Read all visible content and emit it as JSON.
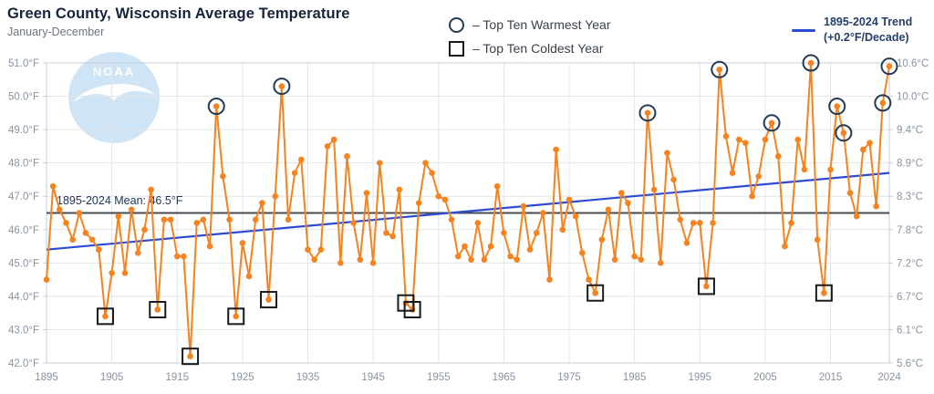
{
  "header": {
    "title": "Green County, Wisconsin Average Temperature",
    "subtitle": "January-December"
  },
  "legend": {
    "warmest_label": "– Top Ten Warmest Year",
    "coldest_label": "– Top Ten Coldest Year"
  },
  "trend_legend": {
    "line1": "1895-2024 Trend",
    "line2": "(+0.2°F/Decade)"
  },
  "logo": {
    "text": "NOAA"
  },
  "chart_data": {
    "type": "line",
    "title": "Green County, Wisconsin Average Temperature",
    "subtitle": "January-December",
    "x_start_year": 1895,
    "x_end_year": 2024,
    "unit": "°F",
    "values": [
      44.5,
      47.3,
      46.6,
      46.2,
      45.7,
      46.5,
      45.9,
      45.7,
      45.4,
      43.4,
      44.7,
      46.4,
      44.7,
      46.6,
      45.3,
      46.0,
      47.2,
      43.6,
      46.3,
      46.3,
      45.2,
      45.2,
      42.2,
      46.2,
      46.3,
      45.5,
      49.7,
      47.6,
      46.3,
      43.4,
      45.6,
      44.6,
      46.3,
      46.8,
      43.9,
      47.0,
      50.3,
      46.3,
      47.7,
      48.1,
      45.4,
      45.1,
      45.4,
      48.5,
      48.7,
      45.0,
      48.2,
      46.2,
      45.1,
      47.1,
      45.0,
      48.0,
      45.9,
      45.8,
      47.2,
      43.8,
      43.6,
      46.8,
      48.0,
      47.7,
      47.0,
      46.9,
      46.3,
      45.2,
      45.5,
      45.1,
      46.2,
      45.1,
      45.5,
      47.3,
      45.9,
      45.2,
      45.1,
      46.7,
      45.4,
      45.9,
      46.5,
      44.5,
      48.4,
      46.0,
      46.9,
      46.4,
      45.3,
      44.5,
      44.1,
      45.7,
      46.6,
      45.1,
      47.1,
      46.8,
      45.2,
      45.1,
      49.5,
      47.2,
      45.0,
      48.3,
      47.5,
      46.3,
      45.6,
      46.2,
      46.2,
      44.3,
      46.2,
      50.8,
      48.8,
      47.7,
      48.7,
      48.6,
      47.0,
      47.6,
      48.7,
      49.2,
      48.2,
      45.5,
      46.2,
      48.7,
      47.8,
      51.0,
      45.7,
      44.1,
      47.8,
      49.7,
      48.9,
      47.1,
      46.4,
      48.4,
      48.6,
      46.7,
      49.8,
      50.9
    ],
    "top_ten_warmest_years": [
      1921,
      1931,
      1987,
      1998,
      2006,
      2012,
      2016,
      2017,
      2023,
      2024
    ],
    "top_ten_coldest_years": [
      1904,
      1912,
      1917,
      1924,
      1929,
      1950,
      1951,
      1979,
      1996,
      2014
    ],
    "mean_f": 46.5,
    "mean_label": "1895-2024 Mean: 46.5°F",
    "trend_f_per_decade": 0.2,
    "trend_start_f": 45.4,
    "trend_end_f": 47.7,
    "ylim_f": [
      42.0,
      51.0
    ],
    "f_tick_labels": [
      "51.0°F",
      "50.0°F",
      "49.0°F",
      "48.0°F",
      "47.0°F",
      "46.0°F",
      "45.0°F",
      "44.0°F",
      "43.0°F",
      "42.0°F"
    ],
    "c_tick_labels": [
      "10.6°C",
      "10.0°C",
      "9.4°C",
      "8.9°C",
      "8.3°C",
      "7.8°C",
      "7.2°C",
      "6.7°C",
      "6.1°C",
      "5.6°C"
    ],
    "x_tick_years": [
      1895,
      1905,
      1915,
      1925,
      1935,
      1945,
      1955,
      1965,
      1975,
      1985,
      1995,
      2005,
      2015,
      2024
    ],
    "grid": true,
    "legend_position": "top",
    "colors": {
      "series": "#F5831F",
      "trend": "#2B4BD3",
      "mean_line": "#474B52",
      "warm_ring": "#243B55",
      "cold_square": "#1A1A1A",
      "gridline": "#E3E6EA",
      "axis_border": "#C7CCD4",
      "tick_text": "#8A93A3",
      "annotation_text": "#1E3356",
      "logo_fill": "#CFE4F4"
    }
  }
}
